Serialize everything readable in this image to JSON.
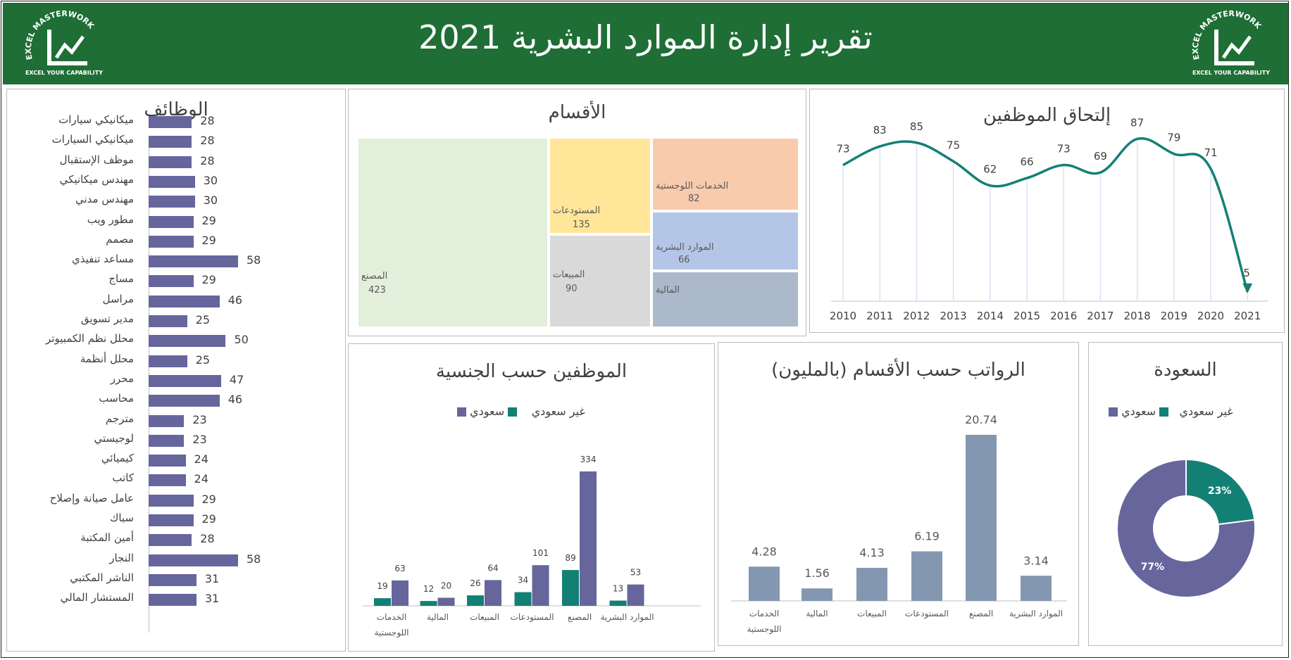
{
  "header": {
    "title": "تقرير إدارة الموارد البشرية 2021",
    "logo_text": "EXCEL MASTERWORK",
    "logo_tagline": "EXCEL YOUR CAPABILITY"
  },
  "colors": {
    "header_bg": "#1e6e35",
    "saudi": "#138075",
    "non_saudi": "#66659c",
    "salary_bar": "#8497b0",
    "line": "#138075"
  },
  "jobs": {
    "title": "الوظائف",
    "items": [
      {
        "label": "ميكانيكي سيارات",
        "value": 28
      },
      {
        "label": "ميكانيكي السيارات",
        "value": 28
      },
      {
        "label": "موظف الإستقبال",
        "value": 28
      },
      {
        "label": "مهندس ميكانيكي",
        "value": 30
      },
      {
        "label": "مهندس مدني",
        "value": 30
      },
      {
        "label": "مطور ويب",
        "value": 29
      },
      {
        "label": "مصمم",
        "value": 29
      },
      {
        "label": "مساعد تنفيذي",
        "value": 58
      },
      {
        "label": "مساج",
        "value": 29
      },
      {
        "label": "مراسل",
        "value": 46
      },
      {
        "label": "مدير تسويق",
        "value": 25
      },
      {
        "label": "محلل نظم الكمبيوتر",
        "value": 50
      },
      {
        "label": "محلل أنظمة",
        "value": 25
      },
      {
        "label": "محرر",
        "value": 47
      },
      {
        "label": "محاسب",
        "value": 46
      },
      {
        "label": "مترجم",
        "value": 23
      },
      {
        "label": "لوجيستي",
        "value": 23
      },
      {
        "label": "كيميائي",
        "value": 24
      },
      {
        "label": "كاتب",
        "value": 24
      },
      {
        "label": "عامل صيانة وإصلاح",
        "value": 29
      },
      {
        "label": "سباك",
        "value": 29
      },
      {
        "label": "أمين المكتبة",
        "value": 28
      },
      {
        "label": "النجار",
        "value": 58
      },
      {
        "label": "الناشر المكتبي",
        "value": 31
      },
      {
        "label": "المستشار المالي",
        "value": 31
      }
    ]
  },
  "departments": {
    "title": "الأقسام",
    "items": [
      {
        "label": "المصنع",
        "value": 423,
        "color": "#e2efda"
      },
      {
        "label": "المستودعات",
        "value": 135,
        "color": "#ffe699"
      },
      {
        "label": "المبيعات",
        "value": 90,
        "color": "#d9d9d9"
      },
      {
        "label": "الخدمات اللوجستية",
        "value": 82,
        "color": "#f8cbad"
      },
      {
        "label": "الموارد البشرية",
        "value": 66,
        "color": "#b4c6e7"
      },
      {
        "label": "المالية",
        "value": "",
        "color": "#acb9ca"
      }
    ]
  },
  "hiring": {
    "title": "إلتحاق الموظفين"
  },
  "nationality": {
    "title": "الموظفين حسب الجنسية",
    "legend_saudi": "سعودي",
    "legend_non_saudi": "غير سعودي"
  },
  "salaries": {
    "title": "الرواتب حسب الأقسام (بالمليون)"
  },
  "saudization": {
    "title": "السعودة",
    "legend_saudi": "سعودي",
    "legend_non_saudi": "غير سعودي"
  },
  "chart_data": [
    {
      "type": "bar",
      "title": "الوظائف",
      "orientation": "horizontal",
      "categories": [
        "ميكانيكي سيارات",
        "ميكانيكي السيارات",
        "موظف الإستقبال",
        "مهندس ميكانيكي",
        "مهندس مدني",
        "مطور ويب",
        "مصمم",
        "مساعد تنفيذي",
        "مساج",
        "مراسل",
        "مدير تسويق",
        "محلل نظم الكمبيوتر",
        "محلل أنظمة",
        "محرر",
        "محاسب",
        "مترجم",
        "لوجيستي",
        "كيميائي",
        "كاتب",
        "عامل صيانة وإصلاح",
        "سباك",
        "أمين المكتبة",
        "النجار",
        "الناشر المكتبي",
        "المستشار المالي"
      ],
      "values": [
        28,
        28,
        28,
        30,
        30,
        29,
        29,
        58,
        29,
        46,
        25,
        50,
        25,
        47,
        46,
        23,
        23,
        24,
        24,
        29,
        29,
        28,
        58,
        31,
        31
      ]
    },
    {
      "type": "treemap",
      "title": "الأقسام",
      "categories": [
        "المصنع",
        "المستودعات",
        "المبيعات",
        "الخدمات اللوجستية",
        "الموارد البشرية",
        "المالية"
      ],
      "values": [
        423,
        135,
        90,
        82,
        66,
        null
      ]
    },
    {
      "type": "line",
      "title": "إلتحاق الموظفين",
      "x": [
        "2010",
        "2011",
        "2012",
        "2013",
        "2014",
        "2015",
        "2016",
        "2017",
        "2018",
        "2019",
        "2020",
        "2021"
      ],
      "values": [
        73,
        83,
        85,
        75,
        62,
        66,
        73,
        69,
        87,
        79,
        71,
        5
      ]
    },
    {
      "type": "bar",
      "title": "الموظفين حسب الجنسية",
      "categories": [
        [
          "الخدمات",
          "اللوجستية"
        ],
        [
          "المالية"
        ],
        [
          "المبيعات"
        ],
        [
          "المستودعات"
        ],
        [
          "المصنع"
        ],
        [
          "الموارد البشرية"
        ]
      ],
      "series": [
        {
          "name": "سعودي",
          "values": [
            19,
            12,
            26,
            34,
            89,
            13
          ]
        },
        {
          "name": "غير سعودي",
          "values": [
            63,
            20,
            64,
            101,
            334,
            53
          ]
        }
      ],
      "legend": "top"
    },
    {
      "type": "bar",
      "title": "الرواتب حسب الأقسام (بالمليون)",
      "categories": [
        [
          "الخدمات",
          "اللوجستية"
        ],
        [
          "المالية"
        ],
        [
          "المبيعات"
        ],
        [
          "المستودعات"
        ],
        [
          "المصنع"
        ],
        [
          "الموارد البشرية"
        ]
      ],
      "values": [
        "4.28",
        "1.56",
        "4.13",
        "6.19",
        "20.74",
        "3.14"
      ]
    },
    {
      "type": "pie",
      "title": "السعودة",
      "categories": [
        "سعودي",
        "غير سعودي"
      ],
      "values": [
        23,
        77
      ],
      "labels": [
        "23%",
        "77%"
      ],
      "legend": "top"
    }
  ]
}
